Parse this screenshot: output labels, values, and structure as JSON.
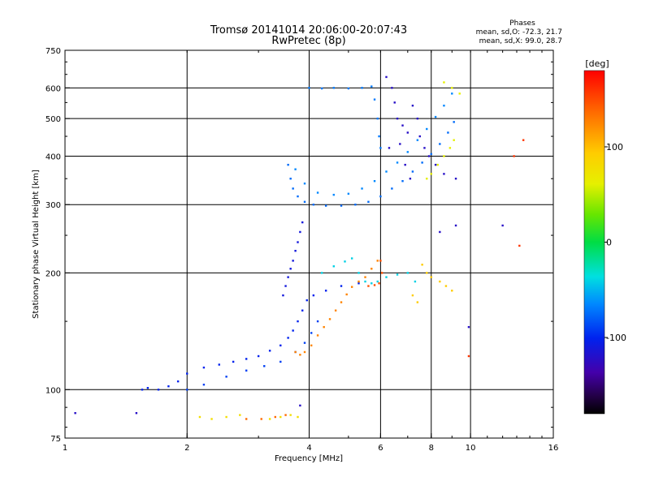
{
  "chart_data": {
    "type": "scatter",
    "title_line1": "Tromsø 20141014 20:06:00-20:07:43",
    "title_line2": "RwPretec (8p)",
    "phases": {
      "heading": "Phases",
      "line1": "mean, sd,O:  -72.3, 21.7",
      "line2": "mean, sd,X:   99.0, 28.7"
    },
    "xlabel": "Frequency [MHz]",
    "ylabel": "Stationary phase Virtual Height [km]",
    "xscale": "log",
    "yscale": "log",
    "xlim": [
      1,
      16
    ],
    "ylim": [
      75,
      750
    ],
    "xticks": [
      1,
      2,
      4,
      6,
      8,
      10,
      16
    ],
    "yticks": [
      75,
      100,
      200,
      300,
      400,
      500,
      600,
      750
    ],
    "xgrid": [
      2,
      4,
      6,
      8,
      10
    ],
    "ygrid": [
      100,
      200,
      300,
      400,
      500,
      600
    ],
    "colorbar": {
      "label": "[deg]",
      "range": [
        -180,
        180
      ],
      "ticks": [
        100,
        0,
        -100
      ],
      "colormap": "rainbow"
    },
    "traces": [
      {
        "name": "",
        "phase": -100,
        "pts": [
          [
            1.55,
            100
          ],
          [
            1.6,
            101
          ],
          [
            1.7,
            100
          ],
          [
            1.8,
            102
          ],
          [
            1.9,
            105
          ],
          [
            2.0,
            110
          ],
          [
            2.2,
            114
          ],
          [
            2.4,
            116
          ],
          [
            2.6,
            118
          ],
          [
            2.8,
            120
          ],
          [
            3.0,
            122
          ],
          [
            3.2,
            126
          ],
          [
            3.4,
            130
          ],
          [
            3.55,
            136
          ],
          [
            3.65,
            142
          ],
          [
            3.75,
            150
          ],
          [
            3.85,
            160
          ],
          [
            3.95,
            170
          ],
          [
            4.1,
            175
          ],
          [
            4.4,
            180
          ],
          [
            4.8,
            185
          ],
          [
            5.3,
            188
          ]
        ]
      },
      {
        "name": "",
        "phase": -90,
        "pts": [
          [
            2.0,
            100
          ],
          [
            2.2,
            103
          ],
          [
            2.5,
            108
          ],
          [
            2.8,
            112
          ],
          [
            3.1,
            115
          ],
          [
            3.4,
            118
          ],
          [
            3.7,
            125
          ],
          [
            3.9,
            132
          ],
          [
            4.05,
            140
          ],
          [
            4.2,
            150
          ]
        ]
      },
      {
        "name": "",
        "phase": -110,
        "pts": [
          [
            3.45,
            175
          ],
          [
            3.5,
            185
          ],
          [
            3.55,
            195
          ],
          [
            3.6,
            205
          ],
          [
            3.65,
            215
          ],
          [
            3.7,
            228
          ],
          [
            3.75,
            240
          ],
          [
            3.8,
            255
          ],
          [
            3.85,
            270
          ]
        ]
      },
      {
        "name": "",
        "phase": -75,
        "pts": [
          [
            3.55,
            380
          ],
          [
            3.6,
            350
          ],
          [
            3.65,
            330
          ],
          [
            3.75,
            315
          ],
          [
            3.9,
            305
          ],
          [
            4.1,
            300
          ],
          [
            4.4,
            298
          ],
          [
            4.8,
            298
          ],
          [
            5.2,
            300
          ],
          [
            5.6,
            305
          ],
          [
            6.0,
            315
          ],
          [
            6.4,
            330
          ],
          [
            6.8,
            345
          ],
          [
            7.2,
            365
          ],
          [
            7.6,
            385
          ],
          [
            8.0,
            405
          ],
          [
            8.4,
            430
          ],
          [
            8.8,
            460
          ],
          [
            9.1,
            490
          ]
        ]
      },
      {
        "name": "",
        "phase": -65,
        "pts": [
          [
            3.7,
            370
          ],
          [
            3.9,
            340
          ],
          [
            4.2,
            322
          ],
          [
            4.6,
            318
          ],
          [
            5.0,
            320
          ],
          [
            5.4,
            330
          ],
          [
            5.8,
            345
          ],
          [
            6.2,
            365
          ],
          [
            6.6,
            385
          ],
          [
            7.0,
            410
          ],
          [
            7.4,
            440
          ],
          [
            7.8,
            470
          ],
          [
            8.2,
            505
          ],
          [
            8.6,
            540
          ],
          [
            9.0,
            580
          ]
        ]
      },
      {
        "name": "",
        "phase": -70,
        "pts": [
          [
            4.0,
            600
          ],
          [
            4.3,
            598
          ],
          [
            4.6,
            600
          ],
          [
            5.0,
            598
          ],
          [
            5.4,
            600
          ],
          [
            5.7,
            605
          ],
          [
            5.8,
            560
          ],
          [
            5.9,
            500
          ],
          [
            5.95,
            450
          ],
          [
            6.0,
            420
          ]
        ]
      },
      {
        "name": "",
        "phase": -120,
        "pts": [
          [
            6.2,
            640
          ],
          [
            6.4,
            600
          ],
          [
            6.5,
            550
          ],
          [
            6.6,
            500
          ],
          [
            6.8,
            480
          ],
          [
            7.0,
            460
          ],
          [
            7.2,
            540
          ],
          [
            7.4,
            500
          ],
          [
            7.5,
            450
          ],
          [
            7.7,
            420
          ],
          [
            7.9,
            400
          ],
          [
            8.2,
            380
          ],
          [
            8.6,
            360
          ],
          [
            9.2,
            350
          ],
          [
            6.3,
            420
          ],
          [
            6.7,
            430
          ],
          [
            6.9,
            380
          ],
          [
            7.1,
            350
          ]
        ]
      },
      {
        "name": "",
        "phase": 60,
        "pts": [
          [
            7.8,
            350
          ],
          [
            8.0,
            360
          ],
          [
            8.3,
            380
          ],
          [
            8.6,
            400
          ],
          [
            8.9,
            420
          ],
          [
            9.1,
            440
          ],
          [
            8.6,
            620
          ],
          [
            9.0,
            600
          ],
          [
            9.4,
            580
          ]
        ]
      },
      {
        "name": "",
        "phase": 130,
        "pts": [
          [
            3.7,
            125
          ],
          [
            3.8,
            123
          ],
          [
            3.9,
            125
          ],
          [
            4.05,
            130
          ],
          [
            4.2,
            138
          ],
          [
            4.35,
            145
          ],
          [
            4.5,
            152
          ],
          [
            4.65,
            160
          ],
          [
            4.8,
            168
          ],
          [
            4.95,
            176
          ],
          [
            5.1,
            184
          ],
          [
            5.3,
            190
          ],
          [
            5.5,
            195
          ],
          [
            5.7,
            205
          ],
          [
            5.9,
            215
          ]
        ]
      },
      {
        "name": "",
        "phase": -40,
        "pts": [
          [
            4.3,
            200
          ],
          [
            4.6,
            208
          ],
          [
            4.9,
            214
          ],
          [
            5.1,
            218
          ],
          [
            5.3,
            200
          ],
          [
            5.5,
            190
          ],
          [
            5.7,
            188
          ],
          [
            5.9,
            190
          ],
          [
            6.2,
            195
          ],
          [
            6.6,
            198
          ],
          [
            7.0,
            200
          ],
          [
            7.3,
            190
          ]
        ]
      },
      {
        "name": "",
        "phase": 150,
        "pts": [
          [
            5.6,
            185
          ],
          [
            5.8,
            186
          ],
          [
            5.95,
            188
          ],
          [
            6.05,
            200
          ],
          [
            6.0,
            215
          ]
        ]
      },
      {
        "name": "",
        "phase": 100,
        "pts": [
          [
            7.6,
            210
          ],
          [
            7.8,
            200
          ],
          [
            8.0,
            195
          ],
          [
            8.4,
            190
          ],
          [
            8.7,
            185
          ],
          [
            9.0,
            180
          ],
          [
            7.2,
            175
          ],
          [
            7.4,
            168
          ]
        ]
      },
      {
        "name": "",
        "phase": 80,
        "pts": [
          [
            2.15,
            85
          ],
          [
            2.3,
            84
          ],
          [
            2.5,
            85
          ],
          [
            2.7,
            86
          ],
          [
            3.2,
            84
          ],
          [
            3.4,
            85
          ],
          [
            3.6,
            86
          ],
          [
            3.75,
            85
          ]
        ]
      },
      {
        "name": "",
        "phase": 140,
        "pts": [
          [
            2.8,
            84
          ],
          [
            3.05,
            84
          ],
          [
            3.3,
            85
          ],
          [
            3.5,
            86
          ]
        ]
      },
      {
        "name": "",
        "phase": -120,
        "pts": [
          [
            1.06,
            87
          ],
          [
            1.5,
            87
          ],
          [
            3.8,
            91
          ],
          [
            9.9,
            145
          ],
          [
            12.0,
            265
          ],
          [
            8.4,
            255
          ],
          [
            9.2,
            265
          ]
        ]
      },
      {
        "name": "",
        "phase": 160,
        "pts": [
          [
            9.9,
            122
          ],
          [
            13.2,
            235
          ],
          [
            13.5,
            440
          ],
          [
            12.8,
            400
          ]
        ]
      }
    ]
  }
}
